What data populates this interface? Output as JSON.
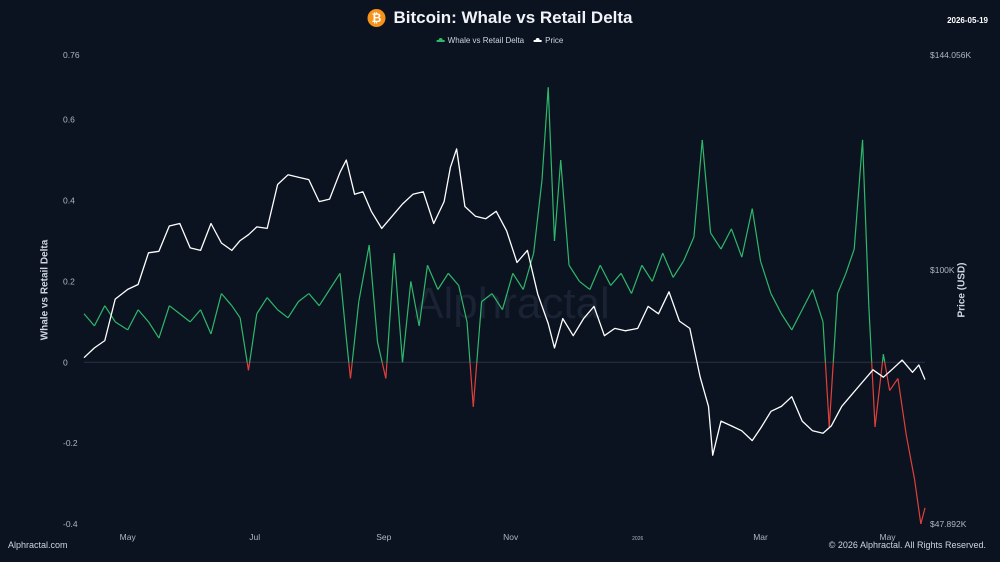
{
  "header": {
    "title": "Bitcoin: Whale vs Retail Delta",
    "date": "2026-05-19",
    "icon": "bitcoin-icon"
  },
  "legend": {
    "delta_label": "Whale vs Retail Delta",
    "price_label": "Price"
  },
  "footer": {
    "left": "Alphractal.com",
    "right": "© 2026 Alphractal. All Rights Reserved."
  },
  "colors": {
    "background": "#0b1220",
    "delta_positive": "#2fb86a",
    "delta_negative": "#e0413a",
    "price": "#ffffff",
    "zero_line": "#2a3344",
    "btc_orange": "#f7931a"
  },
  "chart_data": {
    "type": "line",
    "title": "Bitcoin: Whale vs Retail Delta",
    "ylabel": "Whale vs Retail Delta",
    "y2label": "Price (USD)",
    "ylim": [
      -0.4,
      0.76
    ],
    "y_ticks": [
      "0.76",
      "0.6",
      "0.4",
      "0.2",
      "0",
      "-0.2",
      "-0.4"
    ],
    "y_tick_values": [
      0.76,
      0.6,
      0.4,
      0.2,
      0,
      -0.2,
      -0.4
    ],
    "y2_ticks": [
      "$144.056K",
      "$100K",
      "$47.892K"
    ],
    "y2_tick_values": [
      144056,
      100000,
      47892
    ],
    "x_ticks": [
      "May",
      "Jul",
      "Sep",
      "Nov",
      "2026",
      "Mar",
      "May"
    ],
    "x_tick_dates": [
      "2025-05-01",
      "2025-07-01",
      "2025-09-01",
      "2025-11-01",
      "2026-01-01",
      "2026-03-01",
      "2026-05-01"
    ],
    "x_range": [
      "2025-04-10",
      "2026-05-19"
    ],
    "grid": false,
    "legend_position": "top-center",
    "watermark": "Alphractal",
    "series": [
      {
        "name": "Whale vs Retail Delta",
        "color": "#2fb86a",
        "negative_color": "#e0413a",
        "points": [
          [
            "2025-04-10",
            0.12
          ],
          [
            "2025-04-15",
            0.09
          ],
          [
            "2025-04-20",
            0.14
          ],
          [
            "2025-04-25",
            0.1
          ],
          [
            "2025-05-01",
            0.08
          ],
          [
            "2025-05-06",
            0.13
          ],
          [
            "2025-05-11",
            0.1
          ],
          [
            "2025-05-16",
            0.06
          ],
          [
            "2025-05-21",
            0.14
          ],
          [
            "2025-05-26",
            0.12
          ],
          [
            "2025-05-31",
            0.1
          ],
          [
            "2025-06-05",
            0.13
          ],
          [
            "2025-06-10",
            0.07
          ],
          [
            "2025-06-15",
            0.17
          ],
          [
            "2025-06-20",
            0.14
          ],
          [
            "2025-06-24",
            0.11
          ],
          [
            "2025-06-28",
            -0.02
          ],
          [
            "2025-07-02",
            0.12
          ],
          [
            "2025-07-07",
            0.16
          ],
          [
            "2025-07-12",
            0.13
          ],
          [
            "2025-07-17",
            0.11
          ],
          [
            "2025-07-22",
            0.15
          ],
          [
            "2025-07-27",
            0.17
          ],
          [
            "2025-08-01",
            0.14
          ],
          [
            "2025-08-06",
            0.18
          ],
          [
            "2025-08-11",
            0.22
          ],
          [
            "2025-08-14",
            0.06
          ],
          [
            "2025-08-16",
            -0.04
          ],
          [
            "2025-08-20",
            0.15
          ],
          [
            "2025-08-25",
            0.29
          ],
          [
            "2025-08-29",
            0.05
          ],
          [
            "2025-09-02",
            -0.04
          ],
          [
            "2025-09-06",
            0.27
          ],
          [
            "2025-09-10",
            0.0
          ],
          [
            "2025-09-14",
            0.2
          ],
          [
            "2025-09-18",
            0.09
          ],
          [
            "2025-09-22",
            0.24
          ],
          [
            "2025-09-27",
            0.18
          ],
          [
            "2025-10-02",
            0.22
          ],
          [
            "2025-10-07",
            0.19
          ],
          [
            "2025-10-11",
            0.1
          ],
          [
            "2025-10-14",
            -0.11
          ],
          [
            "2025-10-18",
            0.15
          ],
          [
            "2025-10-23",
            0.17
          ],
          [
            "2025-10-28",
            0.13
          ],
          [
            "2025-11-02",
            0.22
          ],
          [
            "2025-11-07",
            0.18
          ],
          [
            "2025-11-12",
            0.27
          ],
          [
            "2025-11-16",
            0.45
          ],
          [
            "2025-11-19",
            0.68
          ],
          [
            "2025-11-22",
            0.3
          ],
          [
            "2025-11-25",
            0.5
          ],
          [
            "2025-11-29",
            0.24
          ],
          [
            "2025-12-04",
            0.2
          ],
          [
            "2025-12-09",
            0.18
          ],
          [
            "2025-12-14",
            0.24
          ],
          [
            "2025-12-19",
            0.19
          ],
          [
            "2025-12-24",
            0.22
          ],
          [
            "2025-12-29",
            0.17
          ],
          [
            "2026-01-03",
            0.24
          ],
          [
            "2026-01-08",
            0.2
          ],
          [
            "2026-01-13",
            0.27
          ],
          [
            "2026-01-18",
            0.21
          ],
          [
            "2026-01-23",
            0.25
          ],
          [
            "2026-01-28",
            0.31
          ],
          [
            "2026-02-01",
            0.55
          ],
          [
            "2026-02-05",
            0.32
          ],
          [
            "2026-02-10",
            0.28
          ],
          [
            "2026-02-15",
            0.33
          ],
          [
            "2026-02-20",
            0.26
          ],
          [
            "2026-02-25",
            0.38
          ],
          [
            "2026-03-01",
            0.25
          ],
          [
            "2026-03-06",
            0.17
          ],
          [
            "2026-03-11",
            0.12
          ],
          [
            "2026-03-16",
            0.08
          ],
          [
            "2026-03-21",
            0.13
          ],
          [
            "2026-03-26",
            0.18
          ],
          [
            "2026-03-31",
            0.1
          ],
          [
            "2026-04-03",
            -0.16
          ],
          [
            "2026-04-07",
            0.17
          ],
          [
            "2026-04-11",
            0.22
          ],
          [
            "2026-04-15",
            0.28
          ],
          [
            "2026-04-19",
            0.55
          ],
          [
            "2026-04-22",
            0.14
          ],
          [
            "2026-04-25",
            -0.16
          ],
          [
            "2026-04-29",
            0.02
          ],
          [
            "2026-05-02",
            -0.07
          ],
          [
            "2026-05-06",
            -0.04
          ],
          [
            "2026-05-10",
            -0.18
          ],
          [
            "2026-05-14",
            -0.29
          ],
          [
            "2026-05-17",
            -0.4
          ],
          [
            "2026-05-19",
            -0.36
          ]
        ]
      },
      {
        "name": "Price",
        "color": "#ffffff",
        "axis": "right",
        "points": [
          [
            "2025-04-10",
            82000
          ],
          [
            "2025-04-15",
            84000
          ],
          [
            "2025-04-20",
            85500
          ],
          [
            "2025-04-25",
            94000
          ],
          [
            "2025-05-01",
            96000
          ],
          [
            "2025-05-06",
            97000
          ],
          [
            "2025-05-11",
            103500
          ],
          [
            "2025-05-16",
            103800
          ],
          [
            "2025-05-21",
            109000
          ],
          [
            "2025-05-26",
            109500
          ],
          [
            "2025-05-31",
            104500
          ],
          [
            "2025-06-05",
            104000
          ],
          [
            "2025-06-10",
            109500
          ],
          [
            "2025-06-15",
            105500
          ],
          [
            "2025-06-20",
            104000
          ],
          [
            "2025-06-24",
            106000
          ],
          [
            "2025-06-28",
            107200
          ],
          [
            "2025-07-02",
            108800
          ],
          [
            "2025-07-07",
            108500
          ],
          [
            "2025-07-12",
            117500
          ],
          [
            "2025-07-17",
            119500
          ],
          [
            "2025-07-22",
            119000
          ],
          [
            "2025-07-27",
            118500
          ],
          [
            "2025-08-01",
            114000
          ],
          [
            "2025-08-06",
            114500
          ],
          [
            "2025-08-11",
            120000
          ],
          [
            "2025-08-14",
            122500
          ],
          [
            "2025-08-18",
            115500
          ],
          [
            "2025-08-22",
            116000
          ],
          [
            "2025-08-26",
            112000
          ],
          [
            "2025-08-31",
            108500
          ],
          [
            "2025-09-05",
            111000
          ],
          [
            "2025-09-10",
            113500
          ],
          [
            "2025-09-15",
            115500
          ],
          [
            "2025-09-20",
            116000
          ],
          [
            "2025-09-25",
            109500
          ],
          [
            "2025-09-30",
            114000
          ],
          [
            "2025-10-03",
            121000
          ],
          [
            "2025-10-06",
            124800
          ],
          [
            "2025-10-10",
            113000
          ],
          [
            "2025-10-15",
            111000
          ],
          [
            "2025-10-20",
            110500
          ],
          [
            "2025-10-25",
            112000
          ],
          [
            "2025-10-30",
            108000
          ],
          [
            "2025-11-04",
            101500
          ],
          [
            "2025-11-09",
            104000
          ],
          [
            "2025-11-14",
            95000
          ],
          [
            "2025-11-19",
            89000
          ],
          [
            "2025-11-22",
            84000
          ],
          [
            "2025-11-26",
            90000
          ],
          [
            "2025-12-01",
            86500
          ],
          [
            "2025-12-06",
            90000
          ],
          [
            "2025-12-11",
            92500
          ],
          [
            "2025-12-16",
            86500
          ],
          [
            "2025-12-21",
            88000
          ],
          [
            "2025-12-26",
            87500
          ],
          [
            "2026-01-01",
            88000
          ],
          [
            "2026-01-06",
            92500
          ],
          [
            "2026-01-11",
            91000
          ],
          [
            "2026-01-16",
            95500
          ],
          [
            "2026-01-21",
            89500
          ],
          [
            "2026-01-26",
            88000
          ],
          [
            "2026-01-31",
            78000
          ],
          [
            "2026-02-04",
            72000
          ],
          [
            "2026-02-06",
            62000
          ],
          [
            "2026-02-10",
            69000
          ],
          [
            "2026-02-15",
            68000
          ],
          [
            "2026-02-20",
            67000
          ],
          [
            "2026-02-25",
            65000
          ],
          [
            "2026-03-01",
            67500
          ],
          [
            "2026-03-06",
            71000
          ],
          [
            "2026-03-11",
            72000
          ],
          [
            "2026-03-16",
            74000
          ],
          [
            "2026-03-21",
            69000
          ],
          [
            "2026-03-26",
            67000
          ],
          [
            "2026-03-31",
            66500
          ],
          [
            "2026-04-04",
            68000
          ],
          [
            "2026-04-09",
            72000
          ],
          [
            "2026-04-14",
            74500
          ],
          [
            "2026-04-19",
            77000
          ],
          [
            "2026-04-24",
            79500
          ],
          [
            "2026-04-29",
            78000
          ],
          [
            "2026-05-03",
            79500
          ],
          [
            "2026-05-08",
            81500
          ],
          [
            "2026-05-13",
            79000
          ],
          [
            "2026-05-16",
            80500
          ],
          [
            "2026-05-19",
            77500
          ]
        ]
      }
    ]
  }
}
